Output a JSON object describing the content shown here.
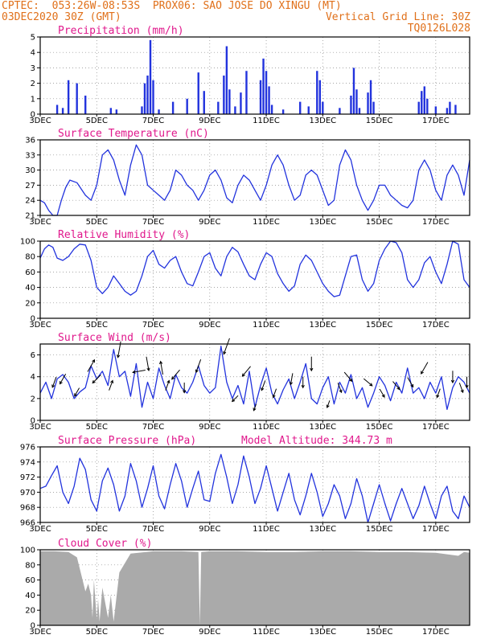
{
  "header": {
    "line1_left": "CPTEC:  053:26W-08:53S  PROX06: SAO JOSE DO XINGU (MT)",
    "line2_left": "03DEC2020 30Z (GMT)",
    "line2_right": "Vertical Grid Line: 30Z",
    "line3_right": "TQ0126L028"
  },
  "colors": {
    "header": "#e0701a",
    "title": "#e0188c",
    "line": "#2233dd",
    "cloud": "#aaaaaa",
    "arrow": "#000000"
  },
  "x_axis": {
    "days_start": 3.0,
    "days_end": 18.2,
    "ticks": [
      {
        "day": 3,
        "label": "3DEC"
      },
      {
        "day": 5,
        "label": "5DEC"
      },
      {
        "day": 7,
        "label": "7DEC"
      },
      {
        "day": 9,
        "label": "9DEC"
      },
      {
        "day": 11,
        "label": "11DEC"
      },
      {
        "day": 13,
        "label": "13DEC"
      },
      {
        "day": 15,
        "label": "15DEC"
      },
      {
        "day": 17,
        "label": "17DEC"
      }
    ]
  },
  "chart_data": [
    {
      "id": "precip",
      "type": "bar",
      "title": "Precipitation (mm/h)",
      "ylim": [
        0,
        5
      ],
      "yticks": [
        0,
        1,
        2,
        3,
        4,
        5
      ],
      "x": [
        3.6,
        3.8,
        4.0,
        4.3,
        4.6,
        5.5,
        5.7,
        6.6,
        6.7,
        6.8,
        6.9,
        7.0,
        7.2,
        7.7,
        8.2,
        8.6,
        8.8,
        9.3,
        9.5,
        9.6,
        9.7,
        9.9,
        10.1,
        10.3,
        10.8,
        10.9,
        11.0,
        11.1,
        11.2,
        11.6,
        12.2,
        12.5,
        12.8,
        12.9,
        13.0,
        13.6,
        14.0,
        14.1,
        14.2,
        14.3,
        14.6,
        14.7,
        14.8,
        16.4,
        16.5,
        16.6,
        16.7,
        17.0,
        17.4,
        17.5,
        17.7
      ],
      "values": [
        0.6,
        0.4,
        2.2,
        2.0,
        1.2,
        0.4,
        0.3,
        0.5,
        2.0,
        2.5,
        4.8,
        2.2,
        0.3,
        0.8,
        1.0,
        2.7,
        1.5,
        0.8,
        2.5,
        4.4,
        1.6,
        0.5,
        1.4,
        2.8,
        2.2,
        3.6,
        2.8,
        1.8,
        0.6,
        0.3,
        0.8,
        0.5,
        2.8,
        2.2,
        0.8,
        0.4,
        1.2,
        3.0,
        1.6,
        0.4,
        1.4,
        2.2,
        0.8,
        0.8,
        1.5,
        1.8,
        1.0,
        0.5,
        0.4,
        0.8,
        0.6
      ]
    },
    {
      "id": "temp",
      "type": "line",
      "title": "Surface Temperature (nC)",
      "ylim": [
        21,
        36
      ],
      "yticks": [
        21,
        24,
        27,
        30,
        33,
        36
      ],
      "x": [
        3.0,
        3.15,
        3.3,
        3.45,
        3.6,
        3.75,
        3.9,
        4.05,
        4.3,
        4.6,
        4.8,
        5.0,
        5.2,
        5.4,
        5.6,
        5.8,
        6.0,
        6.2,
        6.4,
        6.6,
        6.8,
        7.0,
        7.2,
        7.4,
        7.6,
        7.8,
        8.0,
        8.2,
        8.4,
        8.6,
        8.8,
        9.0,
        9.2,
        9.4,
        9.6,
        9.8,
        10.0,
        10.2,
        10.4,
        10.6,
        10.8,
        11.0,
        11.2,
        11.4,
        11.6,
        11.8,
        12.0,
        12.2,
        12.4,
        12.6,
        12.8,
        13.0,
        13.2,
        13.4,
        13.6,
        13.8,
        14.0,
        14.2,
        14.4,
        14.6,
        14.8,
        15.0,
        15.2,
        15.4,
        15.6,
        15.8,
        16.0,
        16.2,
        16.4,
        16.6,
        16.8,
        17.0,
        17.2,
        17.4,
        17.6,
        17.8,
        18.0,
        18.2
      ],
      "values": [
        24,
        23.5,
        22,
        21,
        20.8,
        24,
        26.5,
        28,
        27.5,
        25,
        24,
        27,
        33,
        34,
        32,
        28,
        25,
        31,
        35,
        33,
        27,
        26,
        25,
        24,
        26,
        30,
        29,
        27,
        26,
        24,
        26,
        29,
        30,
        28,
        24.5,
        23.5,
        27,
        29,
        28,
        26,
        24,
        27,
        31,
        33,
        31,
        27,
        24,
        25,
        29,
        30,
        29,
        26,
        23,
        24,
        31,
        34,
        32,
        27,
        24,
        22,
        24,
        27,
        27,
        25,
        24,
        23,
        22.5,
        24,
        30,
        32,
        30,
        26,
        24,
        29,
        31,
        29,
        25,
        32
      ]
    },
    {
      "id": "rh",
      "type": "line",
      "title": "Relative Humidity (%)",
      "ylim": [
        0,
        100
      ],
      "yticks": [
        0,
        20,
        40,
        60,
        80,
        100
      ],
      "x": [
        3.0,
        3.15,
        3.3,
        3.45,
        3.6,
        3.8,
        4.0,
        4.2,
        4.4,
        4.6,
        4.8,
        5.0,
        5.2,
        5.4,
        5.6,
        5.8,
        6.0,
        6.2,
        6.4,
        6.6,
        6.8,
        7.0,
        7.2,
        7.4,
        7.6,
        7.8,
        8.0,
        8.2,
        8.4,
        8.6,
        8.8,
        9.0,
        9.2,
        9.4,
        9.6,
        9.8,
        10.0,
        10.2,
        10.4,
        10.6,
        10.8,
        11.0,
        11.2,
        11.4,
        11.6,
        11.8,
        12.0,
        12.2,
        12.4,
        12.6,
        12.8,
        13.0,
        13.2,
        13.4,
        13.6,
        13.8,
        14.0,
        14.2,
        14.4,
        14.6,
        14.8,
        15.0,
        15.2,
        15.4,
        15.6,
        15.8,
        16.0,
        16.2,
        16.4,
        16.6,
        16.8,
        17.0,
        17.2,
        17.4,
        17.6,
        17.8,
        18.0,
        18.2
      ],
      "values": [
        78,
        90,
        95,
        92,
        78,
        75,
        80,
        90,
        96,
        95,
        75,
        40,
        32,
        40,
        55,
        45,
        35,
        30,
        35,
        55,
        80,
        88,
        70,
        65,
        75,
        80,
        60,
        45,
        42,
        60,
        80,
        85,
        65,
        55,
        80,
        92,
        86,
        70,
        55,
        50,
        70,
        85,
        80,
        58,
        45,
        35,
        42,
        70,
        82,
        75,
        60,
        45,
        35,
        28,
        30,
        55,
        80,
        82,
        50,
        35,
        45,
        75,
        90,
        100,
        98,
        85,
        50,
        40,
        50,
        72,
        80,
        60,
        45,
        70,
        100,
        96,
        50,
        40
      ]
    },
    {
      "id": "wind",
      "type": "line",
      "title": "Surface Wind (m/s)",
      "ylim": [
        0,
        7
      ],
      "yticks": [
        0,
        2,
        4,
        6
      ],
      "x": [
        3.0,
        3.2,
        3.4,
        3.6,
        3.8,
        4.0,
        4.2,
        4.4,
        4.6,
        4.8,
        5.0,
        5.2,
        5.4,
        5.6,
        5.8,
        6.0,
        6.2,
        6.4,
        6.6,
        6.8,
        7.0,
        7.2,
        7.4,
        7.6,
        7.8,
        8.0,
        8.2,
        8.4,
        8.6,
        8.8,
        9.0,
        9.2,
        9.4,
        9.6,
        9.8,
        10.0,
        10.2,
        10.4,
        10.6,
        10.8,
        11.0,
        11.2,
        11.4,
        11.6,
        11.8,
        12.0,
        12.2,
        12.4,
        12.6,
        12.8,
        13.0,
        13.2,
        13.4,
        13.6,
        13.8,
        14.0,
        14.2,
        14.4,
        14.6,
        14.8,
        15.0,
        15.2,
        15.4,
        15.6,
        15.8,
        16.0,
        16.2,
        16.4,
        16.6,
        16.8,
        17.0,
        17.2,
        17.4,
        17.6,
        17.8,
        18.0,
        18.2
      ],
      "values": [
        2.5,
        3.5,
        2.0,
        3.8,
        4.2,
        3.5,
        2.0,
        2.6,
        3.0,
        5.0,
        3.8,
        4.5,
        3.2,
        6.5,
        4.0,
        4.5,
        2.2,
        5.2,
        1.2,
        3.5,
        2.0,
        4.8,
        3.2,
        2.0,
        4.2,
        3.0,
        2.5,
        3.5,
        5.0,
        3.2,
        2.5,
        3.0,
        6.8,
        3.5,
        2.0,
        3.2,
        1.5,
        4.5,
        1.2,
        3.2,
        4.8,
        2.5,
        1.5,
        2.8,
        3.8,
        2.0,
        3.5,
        5.2,
        2.0,
        1.5,
        3.0,
        4.0,
        1.5,
        3.5,
        2.5,
        4.2,
        2.0,
        3.0,
        1.2,
        2.5,
        4.0,
        3.2,
        1.8,
        3.5,
        2.5,
        4.8,
        2.5,
        3.0,
        2.0,
        3.5,
        2.5,
        4.0,
        1.0,
        3.0,
        4.0,
        3.5,
        2.5
      ]
    },
    {
      "id": "pres",
      "type": "line",
      "title": "Surface Pressure (hPa)",
      "subtitle": "Model Altitude: 344.73 m",
      "ylim": [
        966,
        976
      ],
      "yticks": [
        966,
        968,
        970,
        972,
        974,
        976
      ],
      "x": [
        3.0,
        3.2,
        3.4,
        3.6,
        3.8,
        4.0,
        4.2,
        4.4,
        4.6,
        4.8,
        5.0,
        5.2,
        5.4,
        5.6,
        5.8,
        6.0,
        6.2,
        6.4,
        6.6,
        6.8,
        7.0,
        7.2,
        7.4,
        7.6,
        7.8,
        8.0,
        8.2,
        8.4,
        8.6,
        8.8,
        9.0,
        9.2,
        9.4,
        9.6,
        9.8,
        10.0,
        10.2,
        10.4,
        10.6,
        10.8,
        11.0,
        11.2,
        11.4,
        11.6,
        11.8,
        12.0,
        12.2,
        12.4,
        12.6,
        12.8,
        13.0,
        13.2,
        13.4,
        13.6,
        13.8,
        14.0,
        14.2,
        14.4,
        14.6,
        14.8,
        15.0,
        15.2,
        15.4,
        15.6,
        15.8,
        16.0,
        16.2,
        16.4,
        16.6,
        16.8,
        17.0,
        17.2,
        17.4,
        17.6,
        17.8,
        18.0,
        18.2
      ],
      "values": [
        970.5,
        970.8,
        972.2,
        973.5,
        970,
        968.5,
        970.8,
        974.5,
        973,
        969,
        967.5,
        971.5,
        973.2,
        971,
        967.5,
        969.5,
        973.8,
        971.5,
        968,
        970.5,
        973.5,
        969.5,
        967.8,
        971,
        973.8,
        971.5,
        968,
        970.5,
        972.8,
        969,
        968.8,
        972.5,
        975,
        972,
        968.5,
        971,
        974.8,
        972,
        968.5,
        970.5,
        973.5,
        970.5,
        967.5,
        970,
        972.5,
        969,
        967,
        969.5,
        972.5,
        970,
        966.8,
        968.5,
        971,
        969.5,
        966.5,
        968.5,
        971.8,
        969.5,
        966,
        968.5,
        971,
        968.5,
        966.2,
        968.5,
        970.5,
        968.5,
        966.5,
        968.2,
        970.8,
        968.5,
        966.5,
        969.5,
        970.8,
        967.5,
        966.5,
        969.5,
        968
      ]
    },
    {
      "id": "cloud",
      "type": "area",
      "title": "Cloud Cover (%)",
      "ylim": [
        0,
        100
      ],
      "yticks": [
        0,
        20,
        40,
        60,
        80,
        100
      ],
      "x": [
        3.0,
        3.5,
        4.0,
        4.3,
        4.5,
        4.6,
        4.7,
        4.8,
        4.85,
        4.9,
        5.0,
        5.05,
        5.1,
        5.2,
        5.3,
        5.4,
        5.5,
        5.6,
        5.8,
        6.2,
        7.0,
        8.0,
        8.6,
        8.65,
        8.7,
        9.0,
        10.0,
        11.0,
        12.0,
        13.0,
        14.0,
        15.0,
        16.0,
        17.0,
        17.8,
        18.0,
        18.2
      ],
      "values": [
        98,
        98,
        97,
        90,
        60,
        45,
        55,
        40,
        10,
        60,
        8,
        35,
        5,
        50,
        30,
        10,
        40,
        5,
        70,
        95,
        98,
        98,
        97,
        0,
        97,
        98,
        98,
        97,
        97,
        98,
        98,
        97,
        97,
        96,
        92,
        97,
        96
      ]
    }
  ],
  "wind_arrows": {
    "x": [
      3.5,
      3.8,
      4.3,
      4.8,
      5.0,
      5.5,
      5.8,
      6.5,
      6.8,
      7.3,
      7.5,
      7.8,
      8.1,
      8.6,
      9.6,
      9.9,
      10.3,
      10.6,
      10.9,
      11.3,
      11.9,
      12.3,
      12.6,
      13.2,
      13.6,
      13.9,
      14.6,
      15.1,
      15.6,
      16.1,
      16.6,
      17.1,
      17.6,
      17.9,
      18.1
    ],
    "dir_deg": [
      200,
      210,
      210,
      30,
      225,
      20,
      190,
      260,
      170,
      350,
      20,
      220,
      180,
      200,
      200,
      225,
      220,
      200,
      200,
      200,
      190,
      180,
      180,
      200,
      160,
      140,
      130,
      150,
      140,
      150,
      210,
      200,
      180,
      160,
      180
    ],
    "speed": [
      3.5,
      3.8,
      2.6,
      5.0,
      3.8,
      3.2,
      6.5,
      4.5,
      5.2,
      4.8,
      3.2,
      4.2,
      3.0,
      5.0,
      6.8,
      2.0,
      4.5,
      1.2,
      3.2,
      2.5,
      3.8,
      3.5,
      5.2,
      1.5,
      3.0,
      4.0,
      3.5,
      2.5,
      3.2,
      3.5,
      4.8,
      2.5,
      4.0,
      3.0,
      3.5
    ]
  }
}
